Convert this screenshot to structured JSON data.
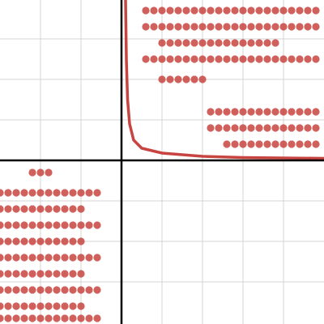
{
  "chart_data": {
    "type": "scatter",
    "xlim": [
      -3,
      5
    ],
    "ylim": [
      -4.04,
      3.96
    ],
    "xticks": [
      -2,
      -1,
      0,
      1,
      2,
      3,
      4
    ],
    "yticks": [
      -3,
      -2,
      -1,
      0,
      1,
      2,
      3
    ],
    "grid": true,
    "curve": {
      "color": "#c74440",
      "x": [
        0.1,
        0.12,
        0.15,
        0.2,
        0.3,
        0.5,
        1,
        2,
        3,
        5
      ],
      "y": [
        3.96,
        2.5,
        1.5,
        0.9,
        0.5,
        0.3,
        0.18,
        0.1,
        0.07,
        0.05
      ]
    },
    "series": [
      {
        "color": "#c74440",
        "x": [
          0.6,
          0.8,
          1,
          1.2,
          1.4,
          1.6,
          1.8,
          2,
          2.2,
          2.4,
          2.6,
          2.8,
          3,
          3.2,
          3.4,
          3.6,
          3.8,
          4,
          4.2,
          4.4,
          4.6,
          4.8,
          0.6,
          0.8,
          1,
          1.2,
          1.4,
          1.6,
          1.8,
          2,
          2.2,
          2.4,
          2.6,
          2.8,
          3,
          3.2,
          3.4,
          3.6,
          3.8,
          4,
          4.2,
          4.4,
          4.6,
          4.8,
          1,
          1.2,
          1.4,
          1.6,
          1.8,
          2,
          2.2,
          2.4,
          2.6,
          2.8,
          3,
          3.2,
          3.4,
          3.6,
          3.8,
          0.6,
          0.8,
          1,
          1.2,
          1.4,
          1.6,
          1.8,
          2,
          2.2,
          2.4,
          2.6,
          2.8,
          3,
          3.2,
          3.4,
          3.6,
          3.8,
          4,
          4.2,
          4.4,
          4.6,
          4.8,
          1,
          1.2,
          1.4,
          1.6,
          1.8,
          2,
          2.2,
          2.4,
          2.6,
          2.8,
          3,
          3.2,
          3.4,
          3.6,
          3.8,
          4,
          4.2,
          4.4,
          4.6,
          4.8,
          2.2,
          2.4,
          2.6,
          2.8,
          3,
          3.2,
          3.4,
          3.6,
          3.8,
          4,
          4.2,
          4.4,
          4.6,
          4.8,
          2.6,
          2.8,
          3,
          3.2,
          3.4,
          3.6,
          3.8,
          4,
          4.2,
          4.4,
          4.6,
          4.8
        ],
        "y": [
          3.7,
          3.7,
          3.7,
          3.7,
          3.7,
          3.7,
          3.7,
          3.7,
          3.7,
          3.7,
          3.7,
          3.7,
          3.7,
          3.7,
          3.7,
          3.7,
          3.7,
          3.7,
          3.7,
          3.7,
          3.7,
          3.7,
          3.3,
          3.3,
          3.3,
          3.3,
          3.3,
          3.3,
          3.3,
          3.3,
          3.3,
          3.3,
          3.3,
          3.3,
          3.3,
          3.3,
          3.3,
          3.3,
          3.3,
          3.3,
          3.3,
          3.3,
          3.3,
          3.3,
          2.9,
          2.9,
          2.9,
          2.9,
          2.9,
          2.9,
          2.9,
          2.9,
          2.9,
          2.9,
          2.9,
          2.9,
          2.9,
          2.9,
          2.9,
          2.5,
          2.5,
          2.5,
          2.5,
          2.5,
          2.5,
          2.5,
          2.5,
          2.5,
          2.5,
          2.5,
          2.5,
          2.5,
          2.5,
          2.5,
          2.5,
          2.5,
          2.5,
          2.5,
          2.5,
          2.5,
          2.5,
          2,
          2,
          2,
          2,
          2,
          2,
          1.2,
          1.2,
          1.2,
          1.2,
          1.2,
          1.2,
          1.2,
          1.2,
          1.2,
          1.2,
          1.2,
          1.2,
          1.2,
          1.2,
          0.8,
          0.8,
          0.8,
          0.8,
          0.8,
          0.8,
          0.8,
          0.8,
          0.8,
          0.8,
          0.8,
          0.8,
          0.8,
          0.8,
          0.4,
          0.4,
          0.4,
          0.4,
          0.4,
          0.4,
          0.4,
          0.4,
          0.4,
          0.4,
          0.4,
          0.4
        ]
      },
      {
        "color": "#c74440",
        "x": [
          -2.2,
          -2,
          -1.8,
          -3,
          -2.8,
          -2.6,
          -2.4,
          -2.2,
          -2,
          -1.8,
          -1.6,
          -1.4,
          -1.2,
          -1,
          -0.8,
          -0.6,
          -3,
          -2.8,
          -2.6,
          -2.4,
          -2.2,
          -2,
          -1.8,
          -1.6,
          -1.4,
          -1.2,
          -1,
          -3,
          -2.8,
          -2.6,
          -2.4,
          -2.2,
          -2,
          -1.8,
          -1.6,
          -1.4,
          -1.2,
          -1,
          -0.8,
          -0.6,
          -3,
          -2.8,
          -2.6,
          -2.4,
          -2.2,
          -2,
          -1.8,
          -1.6,
          -1.4,
          -1.2,
          -1,
          -3,
          -2.8,
          -2.6,
          -2.4,
          -2.2,
          -2,
          -1.8,
          -1.6,
          -1.4,
          -1.2,
          -1,
          -0.8,
          -0.6,
          -3,
          -2.8,
          -2.6,
          -2.4,
          -2.2,
          -2,
          -1.8,
          -1.6,
          -1.4,
          -1.2,
          -1,
          -3,
          -2.8,
          -2.6,
          -2.4,
          -2.2,
          -2,
          -1.8,
          -1.6,
          -1.4,
          -1.2,
          -1,
          -0.8,
          -0.6,
          -3,
          -2.8,
          -2.6,
          -2.4,
          -2.2,
          -2,
          -1.8,
          -1.6,
          -1.4,
          -1.2,
          -1,
          -3,
          -2.8,
          -2.6,
          -2.4,
          -2.2,
          -2,
          -1.8,
          -1.6,
          -1.4,
          -1.2,
          -1,
          -0.8,
          -0.6
        ],
        "y": [
          -0.3,
          -0.3,
          -0.3,
          -0.8,
          -0.8,
          -0.8,
          -0.8,
          -0.8,
          -0.8,
          -0.8,
          -0.8,
          -0.8,
          -0.8,
          -0.8,
          -0.8,
          -0.8,
          -1.2,
          -1.2,
          -1.2,
          -1.2,
          -1.2,
          -1.2,
          -1.2,
          -1.2,
          -1.2,
          -1.2,
          -1.2,
          -1.6,
          -1.6,
          -1.6,
          -1.6,
          -1.6,
          -1.6,
          -1.6,
          -1.6,
          -1.6,
          -1.6,
          -1.6,
          -1.6,
          -1.6,
          -2,
          -2,
          -2,
          -2,
          -2,
          -2,
          -2,
          -2,
          -2,
          -2,
          -2,
          -2.4,
          -2.4,
          -2.4,
          -2.4,
          -2.4,
          -2.4,
          -2.4,
          -2.4,
          -2.4,
          -2.4,
          -2.4,
          -2.4,
          -2.4,
          -2.8,
          -2.8,
          -2.8,
          -2.8,
          -2.8,
          -2.8,
          -2.8,
          -2.8,
          -2.8,
          -2.8,
          -2.8,
          -3.2,
          -3.2,
          -3.2,
          -3.2,
          -3.2,
          -3.2,
          -3.2,
          -3.2,
          -3.2,
          -3.2,
          -3.2,
          -3.2,
          -3.2,
          -3.6,
          -3.6,
          -3.6,
          -3.6,
          -3.6,
          -3.6,
          -3.6,
          -3.6,
          -3.6,
          -3.6,
          -3.6,
          -3.9,
          -3.9,
          -3.9,
          -3.9,
          -3.9,
          -3.9,
          -3.9,
          -3.9,
          -3.9,
          -3.9,
          -3.9,
          -3.9,
          -3.9
        ]
      }
    ]
  }
}
